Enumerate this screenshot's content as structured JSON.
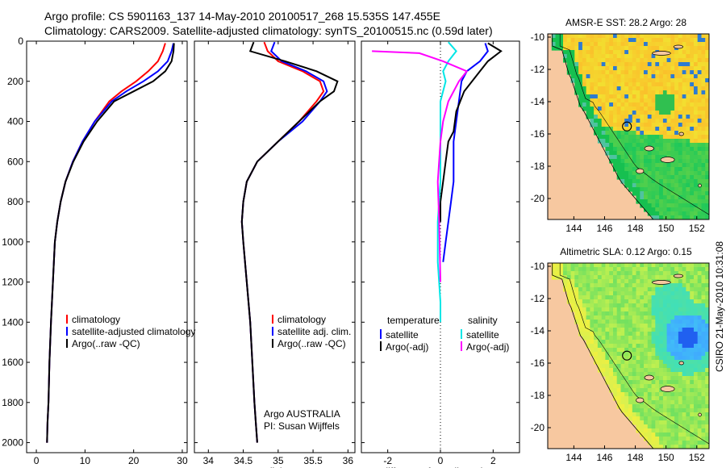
{
  "header": {
    "line1": "Argo profile: CS 5901163_137 14-May-2010 20100517_268 15.535S 147.455E",
    "line2": "Climatology: CARS2009. Satellite-adjusted climatology: synTS_20100515.nc (0.59d later)"
  },
  "side_label": "CSIRO 21-May-2010 10:31:08",
  "chart_data": [
    {
      "type": "line",
      "id": "temperature",
      "xlabel": "temperature",
      "xlim": [
        -2,
        31
      ],
      "xticks": [
        0,
        10,
        20,
        30
      ],
      "ylim": [
        2050,
        0
      ],
      "yticks": [
        0,
        200,
        400,
        600,
        800,
        1000,
        1200,
        1400,
        1600,
        1800,
        2000
      ],
      "legend": [
        "climatology",
        "satellite-adjusted climatology",
        "Argo(..raw -QC)"
      ],
      "legend_position": "bottom-center",
      "annotations": [],
      "series": [
        {
          "name": "climatology",
          "color": "#ff0000",
          "x": [
            26.5,
            26.0,
            25.0,
            23.0,
            20.5,
            17.5,
            15.0,
            12.0,
            9.5,
            7.5,
            6.0,
            5.0,
            4.3,
            3.8,
            3.4,
            3.0,
            2.7,
            2.5,
            2.3,
            2.2
          ],
          "y": [
            10,
            50,
            100,
            150,
            200,
            250,
            300,
            400,
            500,
            600,
            700,
            800,
            900,
            1000,
            1200,
            1400,
            1600,
            1800,
            1900,
            2000
          ]
        },
        {
          "name": "satellite-adjusted climatology",
          "color": "#0000ff",
          "x": [
            28.2,
            27.8,
            27.0,
            25.0,
            22.0,
            18.5,
            15.5,
            12.0,
            9.5,
            7.5,
            6.0,
            5.0,
            4.3,
            3.8,
            3.4,
            3.0,
            2.7,
            2.5,
            2.3,
            2.2
          ],
          "y": [
            10,
            50,
            100,
            150,
            200,
            250,
            300,
            400,
            500,
            600,
            700,
            800,
            900,
            1000,
            1200,
            1400,
            1600,
            1800,
            1900,
            2000
          ]
        },
        {
          "name": "Argo(..raw -QC)",
          "color": "#000000",
          "x": [
            28.3,
            28.2,
            27.8,
            26.5,
            24.0,
            20.0,
            16.0,
            12.5,
            9.7,
            7.6,
            6.0,
            5.0,
            4.3,
            3.8,
            3.4,
            3.0,
            2.7,
            2.5,
            2.3,
            2.2
          ],
          "y": [
            10,
            50,
            100,
            150,
            200,
            250,
            300,
            400,
            500,
            600,
            700,
            800,
            900,
            1000,
            1200,
            1400,
            1600,
            1800,
            1900,
            2000
          ]
        }
      ]
    },
    {
      "type": "line",
      "id": "salinity",
      "xlabel": "salinity",
      "xlim": [
        33.8,
        36.1
      ],
      "xticks": [
        34,
        34.5,
        35,
        35.5,
        36
      ],
      "ylim": [
        2050,
        0
      ],
      "yticks": [
        0,
        200,
        400,
        600,
        800,
        1000,
        1200,
        1400,
        1600,
        1800,
        2000
      ],
      "legend": [
        "climatology",
        "satellite adj. clim.",
        "Argo(..raw -QC)"
      ],
      "legend_position": "bottom-right",
      "annotations": [
        "Argo AUSTRALIA",
        "PI: Susan Wijffels"
      ],
      "series": [
        {
          "name": "climatology",
          "color": "#ff0000",
          "x": [
            34.8,
            34.85,
            35.0,
            35.35,
            35.6,
            35.65,
            35.55,
            35.3,
            35.0,
            34.7,
            34.55,
            34.5,
            34.48,
            34.5,
            34.55,
            34.6,
            34.63,
            34.66,
            34.68,
            34.7
          ],
          "y": [
            5,
            50,
            100,
            150,
            200,
            250,
            300,
            400,
            500,
            600,
            700,
            800,
            900,
            1000,
            1200,
            1400,
            1600,
            1800,
            1900,
            2000
          ]
        },
        {
          "name": "satellite adj. clim.",
          "color": "#0000ff",
          "x": [
            34.95,
            34.9,
            35.05,
            35.4,
            35.65,
            35.7,
            35.6,
            35.35,
            35.0,
            34.7,
            34.55,
            34.5,
            34.48,
            34.5,
            34.55,
            34.6,
            34.63,
            34.66,
            34.68,
            34.7
          ],
          "y": [
            5,
            50,
            100,
            150,
            200,
            250,
            300,
            400,
            500,
            600,
            700,
            800,
            900,
            1000,
            1200,
            1400,
            1600,
            1800,
            1900,
            2000
          ]
        },
        {
          "name": "Argo(..raw -QC)",
          "color": "#000000",
          "x": [
            34.65,
            34.6,
            35.1,
            35.55,
            35.85,
            35.8,
            35.6,
            35.3,
            35.0,
            34.7,
            34.55,
            34.5,
            34.48,
            34.5,
            34.55,
            34.6,
            34.63,
            34.66,
            34.68,
            34.7
          ],
          "y": [
            5,
            50,
            100,
            150,
            200,
            250,
            300,
            400,
            500,
            600,
            700,
            800,
            900,
            1000,
            1200,
            1400,
            1600,
            1800,
            1900,
            2000
          ]
        }
      ]
    },
    {
      "type": "line",
      "id": "difference",
      "xlabel": "difference from climatology",
      "xlim": [
        -3.0,
        3.0
      ],
      "xticks": [
        -2,
        0,
        2
      ],
      "ylim": [
        2050,
        0
      ],
      "yticks": [
        0,
        200,
        400,
        600,
        800,
        1000,
        1200,
        1400,
        1600,
        1800,
        2000
      ],
      "legend_groups": [
        {
          "title": "temperature",
          "entries": [
            "satellite",
            "Argo(-adj)"
          ]
        },
        {
          "title": "salinity",
          "entries": [
            "satellite",
            "Argo(-adj)"
          ]
        }
      ],
      "legend_position": "bottom-center",
      "zero_line": "dotted",
      "series": [
        {
          "name": "temperature satellite",
          "color": "#0000ff",
          "x": [
            1.7,
            1.8,
            1.5,
            1.0,
            0.8,
            0.7,
            0.6,
            0.5,
            0.5,
            0.5,
            0.4,
            0.3,
            0.2,
            0.1
          ],
          "y": [
            10,
            50,
            100,
            150,
            200,
            300,
            400,
            500,
            600,
            700,
            800,
            900,
            1000,
            1100
          ]
        },
        {
          "name": "temperature Argo(-adj)",
          "color": "#000000",
          "x": [
            1.8,
            2.3,
            1.8,
            1.5,
            0.9,
            0.6,
            0.5,
            0.3,
            0.2,
            0.1,
            0.0,
            0.0
          ],
          "y": [
            10,
            50,
            100,
            150,
            250,
            350,
            450,
            500,
            600,
            700,
            800,
            900
          ]
        },
        {
          "name": "salinity satellite",
          "color": "#00e6e6",
          "x": [
            0.3,
            0.6,
            0.3,
            0.1,
            0.2,
            0.0,
            0.0,
            0.0,
            -0.1,
            -0.1,
            0.0,
            0.0
          ],
          "y": [
            5,
            50,
            100,
            150,
            200,
            300,
            500,
            700,
            900,
            1100,
            1300,
            1400
          ]
        },
        {
          "name": "salinity Argo(-adj)",
          "color": "#ff00ff",
          "x": [
            -2.6,
            -0.8,
            0.1,
            1.0,
            0.7,
            0.3,
            0.1,
            0.0,
            -0.1,
            -0.05,
            0.0
          ],
          "y": [
            50,
            60,
            100,
            150,
            200,
            300,
            400,
            500,
            700,
            900,
            1200
          ]
        }
      ]
    },
    {
      "type": "heatmap",
      "id": "sst_map",
      "title": "AMSR-E SST: 28.2 Argo: 28",
      "xlim": [
        142.3,
        152.8
      ],
      "ylim": [
        -21.3,
        -9.8
      ],
      "xticks": [
        144,
        146,
        148,
        150,
        152
      ],
      "yticks": [
        -10,
        -12,
        -14,
        -16,
        -18,
        -20
      ],
      "profile_marker": {
        "lon": 147.455,
        "lat": -15.535
      }
    },
    {
      "type": "heatmap",
      "id": "sla_map",
      "title": "Altimetric SLA: 0.12 Argo: 0.15",
      "xlim": [
        142.3,
        152.8
      ],
      "ylim": [
        -21.3,
        -9.8
      ],
      "xticks": [
        144,
        146,
        148,
        150,
        152
      ],
      "yticks": [
        -10,
        -12,
        -14,
        -16,
        -18,
        -20
      ],
      "profile_marker": {
        "lon": 147.455,
        "lat": -15.535
      }
    }
  ]
}
